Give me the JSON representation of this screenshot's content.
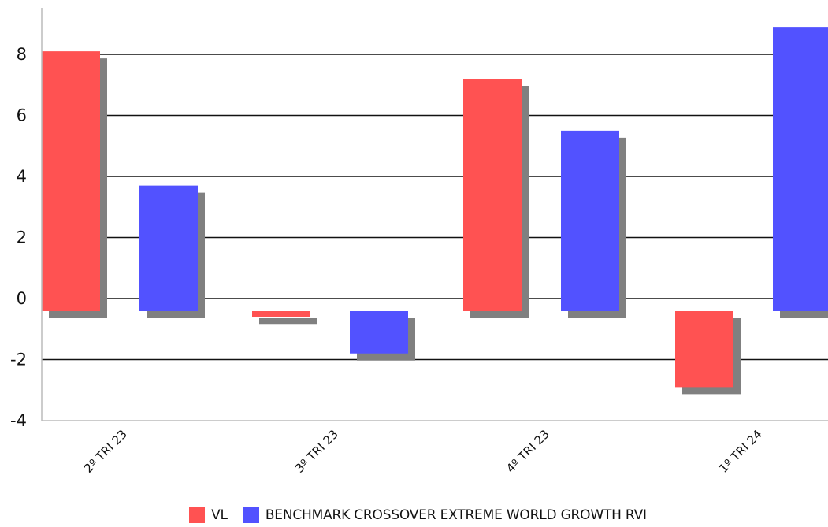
{
  "chart_data": {
    "type": "bar",
    "categories": [
      "2º TRI 23",
      "3º TRI 23",
      "4º TRI 23",
      "1º TRI 24"
    ],
    "series": [
      {
        "name": "VL",
        "values": [
          8.1,
          -0.6,
          7.2,
          -2.9
        ],
        "color": "#ff5252"
      },
      {
        "name": "BENCHMARK CROSSOVER EXTREME WORLD GROWTH RVI",
        "values": [
          3.7,
          -1.8,
          5.5,
          8.9
        ],
        "color": "#5252ff"
      }
    ],
    "ylim": [
      -4,
      9.5
    ],
    "yticks": [
      -4,
      -2,
      0,
      2,
      4,
      6,
      8
    ],
    "ytick_labels": [
      "-4",
      "-2",
      "0",
      "2",
      "4",
      "6",
      "8"
    ],
    "grid": true,
    "legend": "bottom",
    "title": "",
    "xlabel": "",
    "ylabel": ""
  }
}
